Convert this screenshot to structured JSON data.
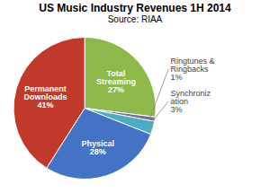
{
  "chart_data": {
    "type": "pie",
    "title": "US Music Industry Revenues 1H 2014",
    "subtitle": "Source: RIAA",
    "categories": [
      "Total\nStreaming",
      "Ringtunes &\nRingbacks",
      "Synchroniz\nation",
      "Physical",
      "Permanent\nDownloads"
    ],
    "values": [
      27,
      1,
      3,
      28,
      41
    ],
    "value_labels": [
      "27%",
      "1%",
      "3%",
      "28%",
      "41%"
    ],
    "colors": [
      "#8DB84A",
      "#7B68AA",
      "#4BACC6",
      "#4472C4",
      "#C0392B"
    ],
    "data_labels": true
  }
}
